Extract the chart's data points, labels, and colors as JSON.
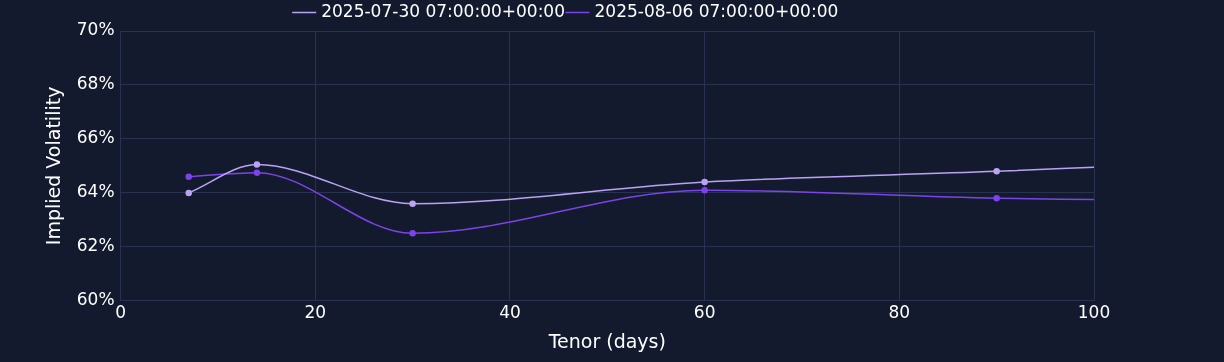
{
  "chart_data": {
    "type": "line",
    "xlabel": "Tenor (days)",
    "ylabel": "Implied Volatility",
    "xlim": [
      0,
      100
    ],
    "xticks": [
      0,
      20,
      40,
      60,
      80,
      100
    ],
    "ylim": [
      60,
      70
    ],
    "yticks": [
      {
        "value": 60,
        "label": "60%"
      },
      {
        "value": 62,
        "label": "62%"
      },
      {
        "value": 64,
        "label": "64%"
      },
      {
        "value": 66,
        "label": "66%"
      },
      {
        "value": 68,
        "label": "68%"
      },
      {
        "value": 70,
        "label": "70%"
      }
    ],
    "grid": true,
    "legend": "top",
    "marker": "circle",
    "series": [
      {
        "name": "2025-07-30 07:00:00+00:00",
        "color": "#b9a3f2",
        "x": [
          7,
          14,
          30,
          60,
          90,
          100
        ],
        "values": [
          64.0,
          65.05,
          63.6,
          64.4,
          64.8,
          64.95
        ]
      },
      {
        "name": "2025-08-06 07:00:00+00:00",
        "color": "#7c44e8",
        "x": [
          7,
          14,
          30,
          60,
          90,
          100
        ],
        "values": [
          64.6,
          64.75,
          62.5,
          64.1,
          63.8,
          63.75
        ]
      }
    ]
  }
}
